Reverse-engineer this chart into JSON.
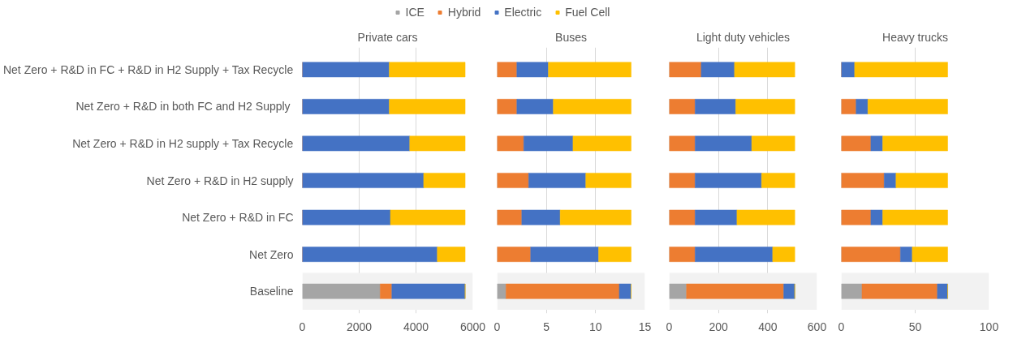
{
  "chart_data": [
    {
      "type": "bar",
      "title": "Private cars",
      "orientation": "horizontal",
      "stacked": true,
      "legend": "top",
      "grid": "x",
      "categories": [
        "Net Zero + R&D in FC + R&D in H2 Supply + Tax Recycle",
        "Net Zero + R&D in both FC and  H2 Supply",
        "Net Zero + R&D in H2 supply + Tax Recycle",
        "Net Zero + R&D in H2 supply",
        "Net Zero + R&D in FC",
        "Net Zero",
        "Baseline"
      ],
      "xlim": [
        0,
        6000
      ],
      "xticks": [
        0,
        2000,
        4000,
        6000
      ],
      "bands": [
        {
          "axis": "y",
          "from": "Baseline",
          "to": "Baseline",
          "color": "#f2f2f2"
        }
      ],
      "series": [
        {
          "name": "ICE",
          "color": "#a5a5a5",
          "values": [
            0,
            0,
            0,
            0,
            0,
            0,
            2740
          ]
        },
        {
          "name": "Hybrid",
          "color": "#ed7d31",
          "values": [
            0,
            0,
            0,
            0,
            0,
            0,
            410
          ]
        },
        {
          "name": "Electric",
          "color": "#4472c4",
          "values": [
            3060,
            3060,
            3780,
            4270,
            3100,
            4750,
            2580
          ]
        },
        {
          "name": "Fuel Cell",
          "color": "#ffc000",
          "values": [
            2670,
            2670,
            1950,
            1460,
            2630,
            980,
            0
          ]
        }
      ]
    },
    {
      "type": "bar",
      "title": "Buses",
      "orientation": "horizontal",
      "stacked": true,
      "grid": "x",
      "tick_labels": "x",
      "categories": [
        "Net Zero + R&D in FC + R&D in H2 Supply + Tax Recycle",
        "Net Zero + R&D in both FC and  H2 Supply",
        "Net Zero + R&D in H2 supply + Tax Recycle",
        "Net Zero + R&D in H2 supply",
        "Net Zero + R&D in FC",
        "Net Zero",
        "Baseline"
      ],
      "xlim": [
        0,
        15
      ],
      "xticks": [
        0,
        5,
        10,
        15
      ],
      "bands": [
        {
          "axis": "y",
          "from": "Baseline",
          "to": "Baseline",
          "color": "#f2f2f2"
        }
      ],
      "series": [
        {
          "color": "#a5a5a5",
          "values": [
            0,
            0,
            0,
            0,
            0,
            0,
            0.9
          ]
        },
        {
          "color": "#ed7d31",
          "values": [
            2.0,
            2.0,
            2.7,
            3.2,
            2.5,
            3.4,
            11.5
          ]
        },
        {
          "color": "#4472c4",
          "values": [
            3.2,
            3.7,
            5.0,
            5.8,
            3.9,
            6.9,
            1.2
          ]
        },
        {
          "color": "#ffc000",
          "values": [
            8.4,
            7.9,
            5.9,
            4.6,
            7.2,
            3.3,
            0
          ]
        }
      ]
    },
    {
      "type": "bar",
      "title": "Light duty vehicles",
      "orientation": "horizontal",
      "stacked": true,
      "grid": "x",
      "tick_labels": "x",
      "categories": [
        "Net Zero + R&D in FC + R&D in H2 Supply + Tax Recycle",
        "Net Zero + R&D in both FC and  H2 Supply",
        "Net Zero + R&D in H2 supply + Tax Recycle",
        "Net Zero + R&D in H2 supply",
        "Net Zero + R&D in FC",
        "Net Zero",
        "Baseline"
      ],
      "xlim": [
        0,
        600
      ],
      "xticks": [
        0,
        200,
        400,
        600
      ],
      "bands": [
        {
          "axis": "y",
          "from": "Baseline",
          "to": "Baseline",
          "color": "#f2f2f2"
        }
      ],
      "series": [
        {
          "color": "#a5a5a5",
          "values": [
            0,
            0,
            0,
            0,
            0,
            0,
            70
          ]
        },
        {
          "color": "#ed7d31",
          "values": [
            130,
            105,
            105,
            105,
            105,
            105,
            395
          ]
        },
        {
          "color": "#4472c4",
          "values": [
            135,
            165,
            230,
            270,
            170,
            315,
            45
          ]
        },
        {
          "color": "#ffc000",
          "values": [
            245,
            240,
            175,
            135,
            235,
            90,
            0
          ]
        }
      ]
    },
    {
      "type": "bar",
      "title": "Heavy trucks",
      "orientation": "horizontal",
      "stacked": true,
      "grid": "x",
      "tick_labels": "x",
      "categories": [
        "Net Zero + R&D in FC + R&D in H2 Supply + Tax Recycle",
        "Net Zero + R&D in both FC and  H2 Supply",
        "Net Zero + R&D in H2 supply + Tax Recycle",
        "Net Zero + R&D in H2 supply",
        "Net Zero + R&D in FC",
        "Net Zero",
        "Baseline"
      ],
      "xlim": [
        0,
        100
      ],
      "xticks": [
        0,
        50,
        100
      ],
      "bands": [
        {
          "axis": "y",
          "from": "Baseline",
          "to": "Baseline",
          "color": "#f2f2f2"
        }
      ],
      "series": [
        {
          "color": "#a5a5a5",
          "values": [
            0,
            0,
            0,
            0,
            0,
            0,
            14
          ]
        },
        {
          "color": "#ed7d31",
          "values": [
            0,
            10,
            20,
            29,
            20,
            40,
            51
          ]
        },
        {
          "color": "#4472c4",
          "values": [
            9,
            8,
            8,
            8,
            8,
            8,
            7
          ]
        },
        {
          "color": "#ffc000",
          "values": [
            63,
            54,
            44,
            35,
            44,
            24,
            0
          ]
        }
      ]
    }
  ]
}
